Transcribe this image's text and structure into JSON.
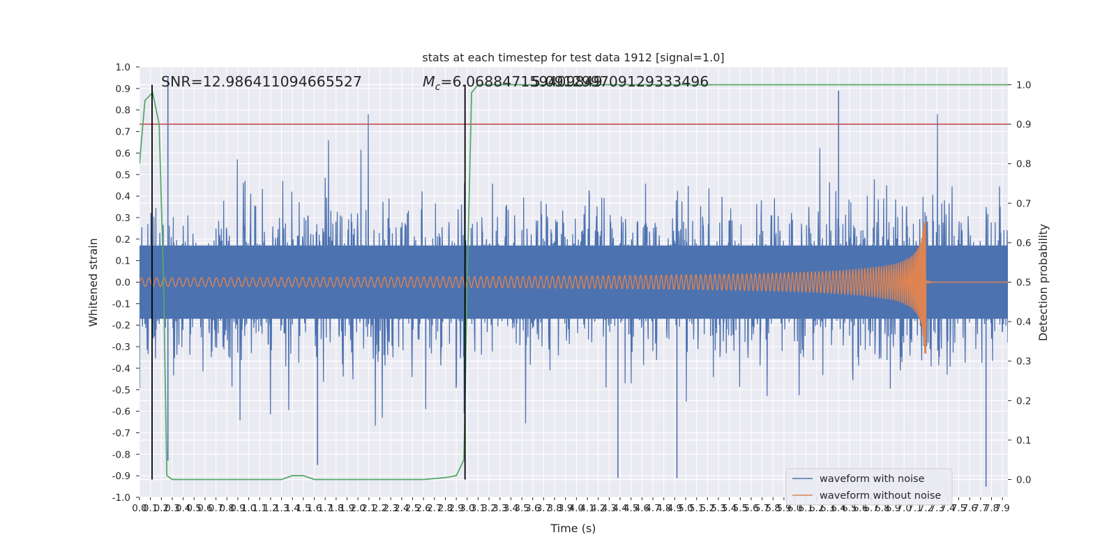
{
  "chart_data": {
    "type": "line",
    "title": "stats at each timestep for test data 1912 [signal=1.0]",
    "xlabel": "Time (s)",
    "ylabel": "Whitened strain",
    "y2label": "Detection probability",
    "xlim": [
      0.0,
      7.95
    ],
    "ylim": [
      -1.0,
      1.0
    ],
    "y2lim": [
      -0.045,
      1.045
    ],
    "xticks": [
      "0.0",
      "0.1",
      "0.2",
      "0.3",
      "0.4",
      "0.5",
      "0.6",
      "0.7",
      "0.8",
      "0.9",
      "1.0",
      "1.1",
      "1.2",
      "1.3",
      "1.4",
      "1.5",
      "1.6",
      "1.7",
      "1.8",
      "1.9",
      "2.0",
      "2.1",
      "2.2",
      "2.3",
      "2.4",
      "2.5",
      "2.6",
      "2.7",
      "2.8",
      "2.9",
      "3.0",
      "3.1",
      "3.2",
      "3.3",
      "3.4",
      "3.5",
      "3.6",
      "3.7",
      "3.8",
      "3.9",
      "4.0",
      "4.1",
      "4.2",
      "4.3",
      "4.4",
      "4.5",
      "4.6",
      "4.7",
      "4.8",
      "4.9",
      "5.0",
      "5.1",
      "5.2",
      "5.3",
      "5.4",
      "5.5",
      "5.6",
      "5.7",
      "5.8",
      "5.9",
      "6.0",
      "6.1",
      "6.2",
      "6.3",
      "6.4",
      "6.5",
      "6.6",
      "6.7",
      "6.8",
      "6.9",
      "7.0",
      "7.1",
      "7.2",
      "7.3",
      "7.4",
      "7.5",
      "7.6",
      "7.7",
      "7.8",
      "7.9"
    ],
    "yticks": [
      "-1.0",
      "-0.9",
      "-0.8",
      "-0.7",
      "-0.6",
      "-0.5",
      "-0.4",
      "-0.3",
      "-0.2",
      "-0.1",
      "0.0",
      "0.1",
      "0.2",
      "0.3",
      "0.4",
      "0.5",
      "0.6",
      "0.7",
      "0.8",
      "0.9",
      "1.0"
    ],
    "y2ticks": [
      "0.0",
      "0.1",
      "0.2",
      "0.3",
      "0.4",
      "0.5",
      "0.6",
      "0.7",
      "0.8",
      "0.9",
      "1.0"
    ],
    "grid": true,
    "legend_position": "lower-right",
    "series": [
      {
        "name": "waveform with noise",
        "axis": "left",
        "color": "#4c72b0",
        "kind": "noisy-strain",
        "typical_envelope": [
          -0.42,
          0.42
        ],
        "peak_spikes": [
          [
            0.26,
            0.95
          ],
          [
            0.26,
            -0.83
          ],
          [
            1.63,
            -0.85
          ],
          [
            4.38,
            -0.91
          ],
          [
            4.92,
            -0.91
          ],
          [
            6.4,
            0.89
          ],
          [
            7.75,
            -0.95
          ]
        ]
      },
      {
        "name": "waveform without noise",
        "axis": "left",
        "color": "#dd8452",
        "kind": "chirp",
        "start_amplitude": 0.02,
        "peak_time": 7.2,
        "peak_value": 0.28,
        "trough_value": -0.33,
        "start_period": 0.035
      },
      {
        "name": "",
        "axis": "right",
        "color": "#55a868",
        "kind": "detection-probability",
        "points": [
          [
            0.0,
            0.8
          ],
          [
            0.05,
            0.96
          ],
          [
            0.12,
            0.98
          ],
          [
            0.18,
            0.9
          ],
          [
            0.22,
            0.5
          ],
          [
            0.25,
            0.01
          ],
          [
            0.3,
            0.0
          ],
          [
            1.0,
            0.0
          ],
          [
            1.3,
            0.0
          ],
          [
            1.4,
            0.01
          ],
          [
            1.5,
            0.01
          ],
          [
            1.6,
            0.0
          ],
          [
            1.8,
            0.0
          ],
          [
            2.2,
            0.0
          ],
          [
            2.6,
            0.0
          ],
          [
            2.8,
            0.005
          ],
          [
            2.9,
            0.01
          ],
          [
            2.97,
            0.05
          ],
          [
            3.0,
            0.5
          ],
          [
            3.04,
            0.98
          ],
          [
            3.1,
            1.0
          ],
          [
            7.95,
            1.0
          ]
        ]
      }
    ],
    "threshold_line": {
      "y2": 0.9,
      "color": "#c44e52"
    },
    "vertical_markers": [
      0.115,
      2.98
    ],
    "annotations": {
      "snr": "SNR=12.986411094665527",
      "mc_symbol": "M",
      "mc_subscript": "c",
      "mc_overlap_a": "=6.068847159409849",
      "mc_overlap_b": "5.091299709129333496"
    }
  }
}
